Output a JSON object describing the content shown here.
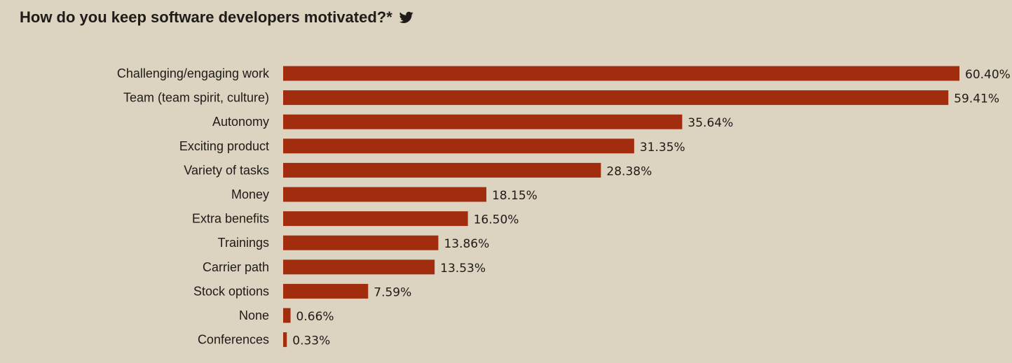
{
  "colors": {
    "background": "#dcd3c0",
    "bar": "#a12d0e",
    "text": "#1e1b18"
  },
  "header": {
    "title": "How do you keep software developers motivated?*",
    "share_icon": "twitter-icon"
  },
  "chart_data": {
    "type": "bar",
    "orientation": "horizontal",
    "title": "How do you keep software developers motivated?*",
    "xlabel": "",
    "ylabel": "",
    "xlim": [
      0,
      60.4
    ],
    "grid": false,
    "legend": "none",
    "categories": [
      "Challenging/engaging work",
      "Team (team spirit, culture)",
      "Autonomy",
      "Exciting product",
      "Variety of tasks",
      "Money",
      "Extra benefits",
      "Trainings",
      "Carrier path",
      "Stock options",
      "None",
      "Conferences"
    ],
    "values": [
      60.4,
      59.41,
      35.64,
      31.35,
      28.38,
      18.15,
      16.5,
      13.86,
      13.53,
      7.59,
      0.66,
      0.33
    ],
    "value_labels": [
      "60.40%",
      "59.41%",
      "35.64%",
      "31.35%",
      "28.38%",
      "18.15%",
      "16.50%",
      "13.86%",
      "13.53%",
      "7.59%",
      "0.66%",
      "0.33%"
    ]
  }
}
